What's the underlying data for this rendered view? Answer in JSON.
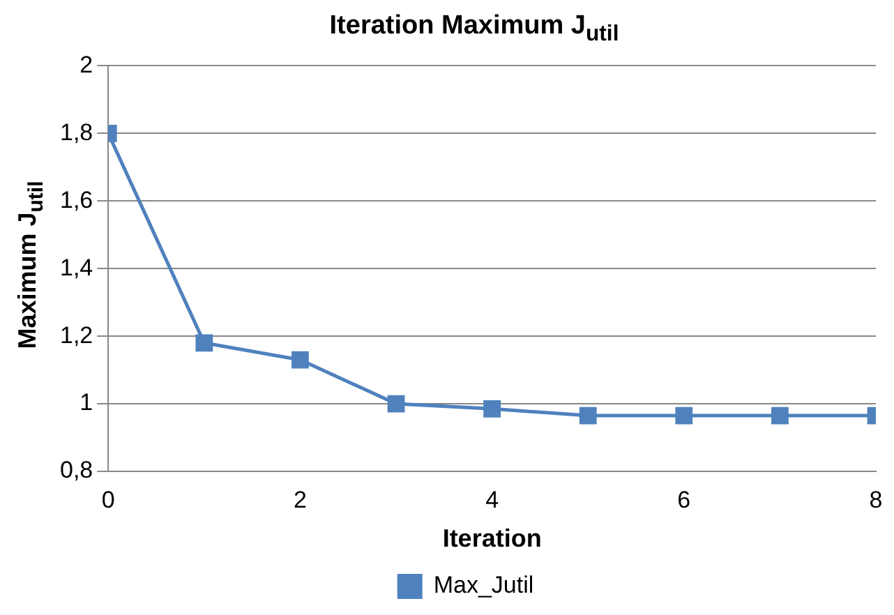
{
  "chart_data": {
    "type": "line",
    "title": "Iteration Maximum J$_{util}$",
    "xlabel": "Iteration",
    "ylabel": "Maximum J$_{util}$",
    "x": [
      0,
      1,
      2,
      3,
      4,
      5,
      6,
      7,
      8
    ],
    "series": [
      {
        "name": "Max_Jutil",
        "color": "#4f81bd",
        "values": [
          1.8,
          1.18,
          1.13,
          1.0,
          0.985,
          0.965,
          0.965,
          0.965,
          0.965
        ]
      }
    ],
    "xlim": [
      0,
      8
    ],
    "xticks": [
      0,
      2,
      4,
      6,
      8
    ],
    "ylim": [
      0.8,
      2
    ],
    "yticks": [
      {
        "value": 0.8,
        "label": "0,8"
      },
      1,
      {
        "value": 1.2,
        "label": "1,2"
      },
      {
        "value": 1.4,
        "label": "1,4"
      },
      {
        "value": 1.6,
        "label": "1,6"
      },
      {
        "value": 1.8,
        "label": "1,8"
      },
      2
    ],
    "grid": "y",
    "legend": "bottom",
    "marker": "square",
    "line_style": "solid"
  }
}
